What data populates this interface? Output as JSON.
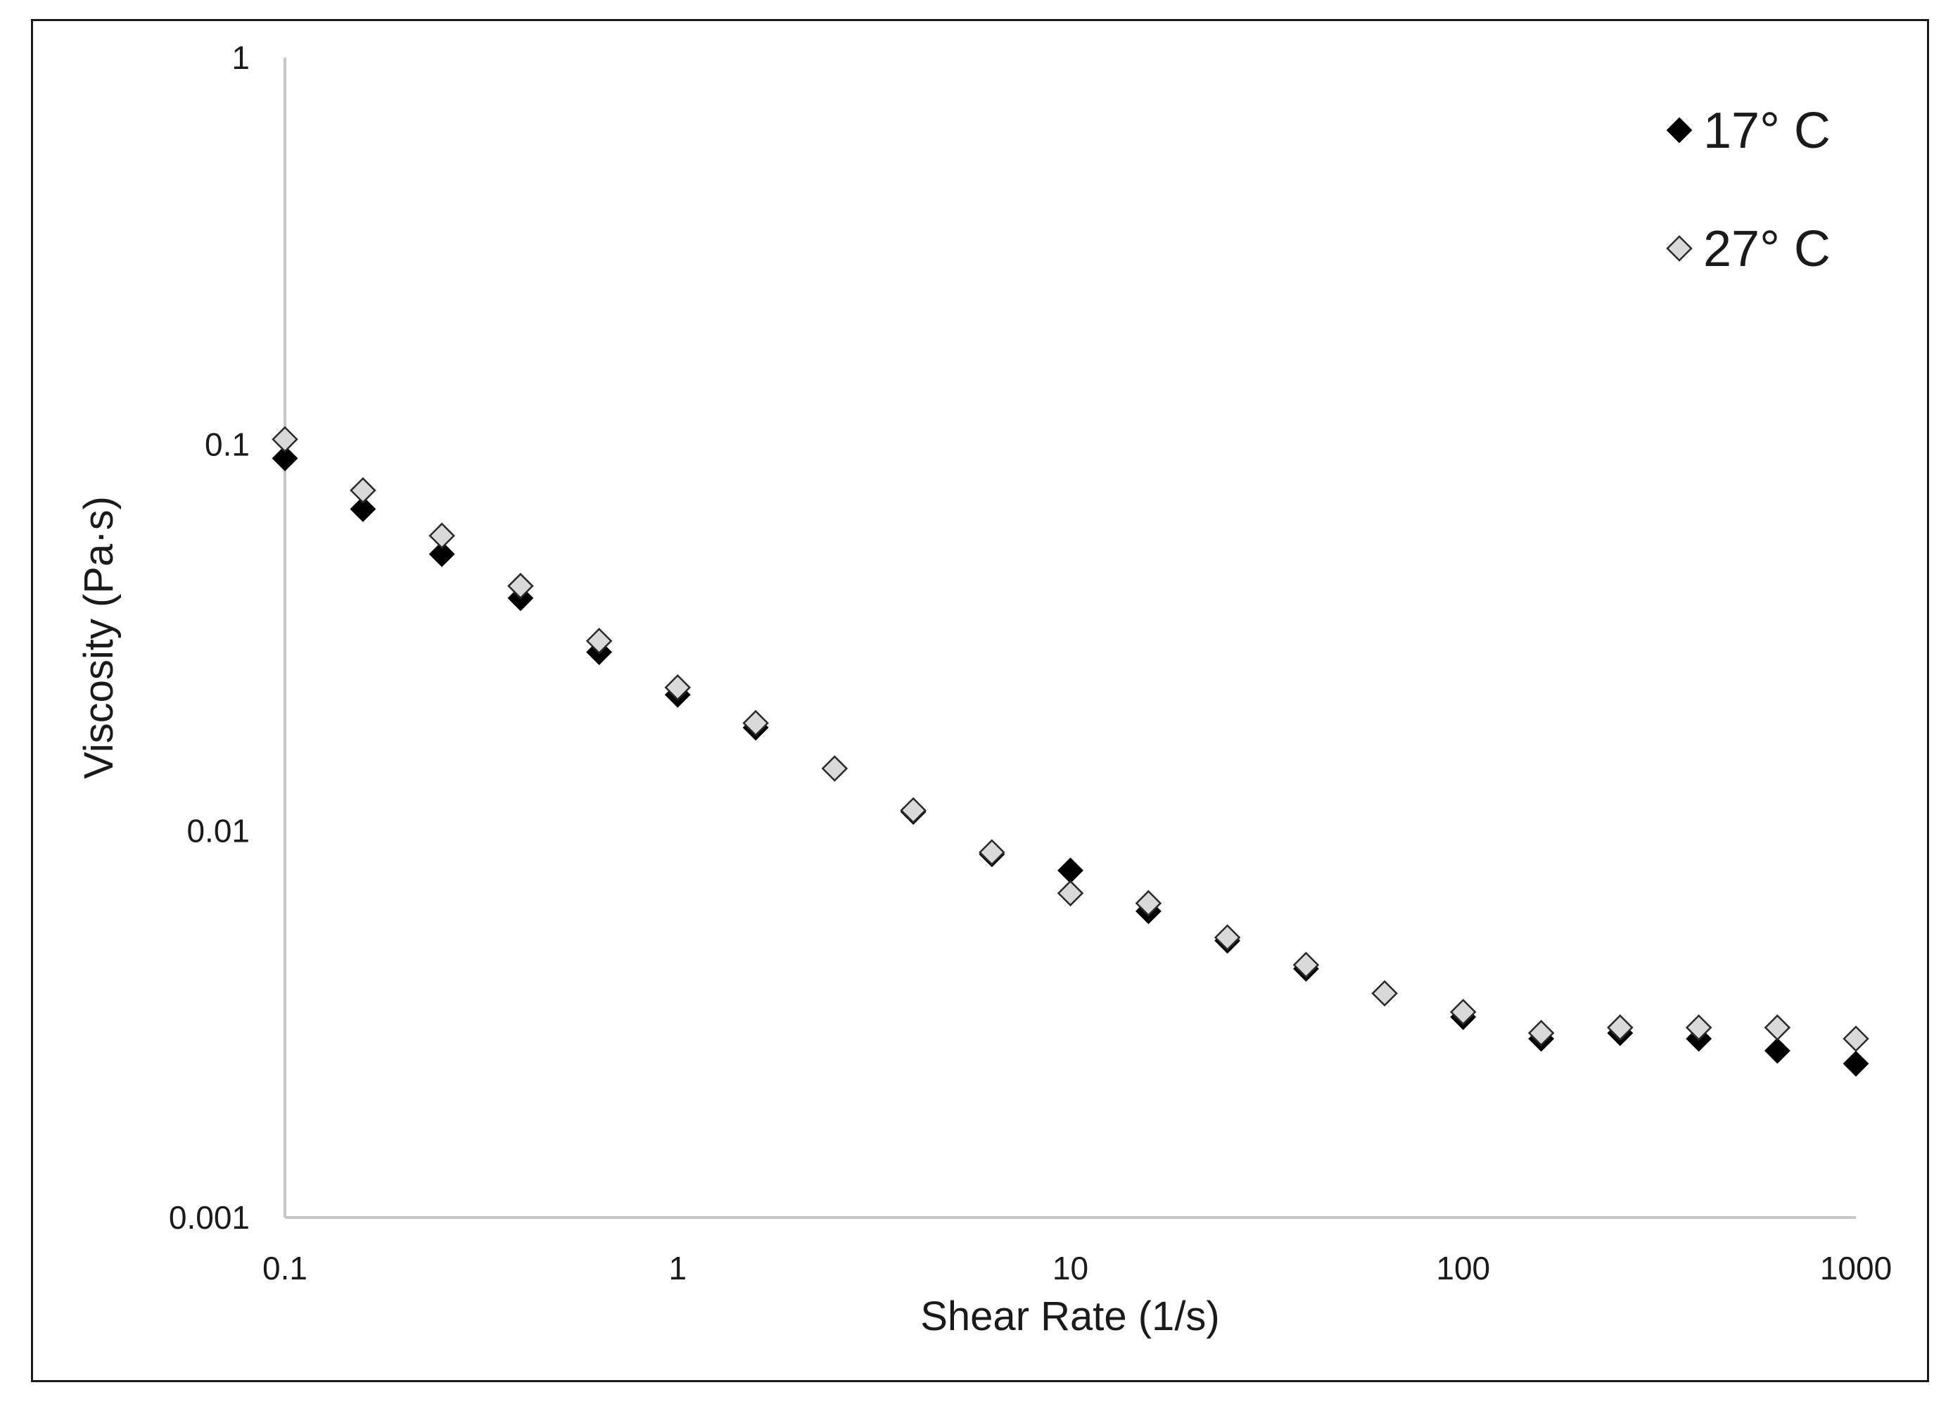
{
  "chart_data": {
    "type": "scatter",
    "title": "",
    "xlabel": "Shear Rate (1/s)",
    "ylabel": "Viscosity (Pa·s)",
    "x_scale": "log",
    "y_scale": "log",
    "xlim": [
      0.1,
      1000
    ],
    "ylim": [
      0.001,
      1
    ],
    "x_ticks": [
      "0.1",
      "1",
      "10",
      "100",
      "1000"
    ],
    "y_ticks": [
      "1",
      "0.1",
      "0.01",
      "0.001"
    ],
    "grid": false,
    "legend_position": "top-right",
    "series": [
      {
        "name": "17° C",
        "marker": "diamond-filled",
        "color": "#000000",
        "x": [
          0.1,
          0.158,
          0.251,
          0.398,
          0.631,
          1,
          1.58,
          2.51,
          3.98,
          6.31,
          10,
          15.8,
          25.1,
          39.8,
          63.1,
          100,
          158,
          251,
          398,
          631,
          1000
        ],
        "y": [
          0.092,
          0.068,
          0.052,
          0.04,
          0.029,
          0.0225,
          0.0185,
          0.0145,
          0.0112,
          0.0087,
          0.0079,
          0.0062,
          0.0052,
          0.0044,
          0.0038,
          0.0033,
          0.0029,
          0.003,
          0.0029,
          0.0027,
          0.0025
        ]
      },
      {
        "name": "27° C",
        "marker": "diamond-open",
        "color": "#d9d9d9",
        "x": [
          0.1,
          0.158,
          0.251,
          0.398,
          0.631,
          1,
          1.58,
          2.51,
          3.98,
          6.31,
          10,
          15.8,
          25.1,
          39.8,
          63.1,
          100,
          158,
          251,
          398,
          631,
          1000
        ],
        "y": [
          0.103,
          0.076,
          0.058,
          0.043,
          0.031,
          0.0235,
          0.019,
          0.0145,
          0.0113,
          0.0088,
          0.0069,
          0.0065,
          0.0053,
          0.0045,
          0.0038,
          0.0034,
          0.003,
          0.0031,
          0.0031,
          0.0031,
          0.0029
        ]
      }
    ]
  }
}
